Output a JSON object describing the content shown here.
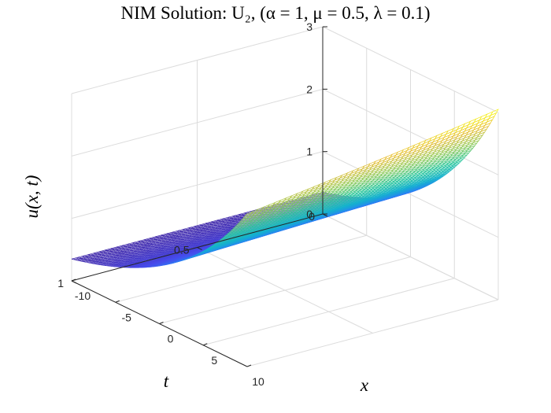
{
  "chart_data": {
    "type": "surface",
    "title": "NIM Solution: U₂, (α = 1,  μ = 0.5,  λ = 0.1)",
    "xlabel": "x",
    "ylabel": "t",
    "zlabel": "u(x, t)",
    "xlim": [
      -10,
      10
    ],
    "ylim": [
      0,
      1
    ],
    "zlim": [
      0,
      3
    ],
    "x_ticks": [
      "-10",
      "-5",
      "0",
      "5",
      "10"
    ],
    "y_ticks": [
      "0",
      "0.5",
      "1"
    ],
    "z_ticks": [
      "0",
      "1",
      "2",
      "3"
    ],
    "grid": true,
    "colormap": "parula",
    "surface_corners": [
      {
        "x": -10,
        "t": 0,
        "u": 0.35
      },
      {
        "x": -10,
        "t": 1,
        "u": 0.35
      },
      {
        "x": 10,
        "t": 0,
        "u": 3.05
      },
      {
        "x": 10,
        "t": 1,
        "u": 2.45
      }
    ],
    "colors": {
      "grid": "#dcdcdc",
      "axis": "#262626",
      "edge_low": "#3e26a8",
      "edge_high": "#f9fb0e"
    }
  }
}
